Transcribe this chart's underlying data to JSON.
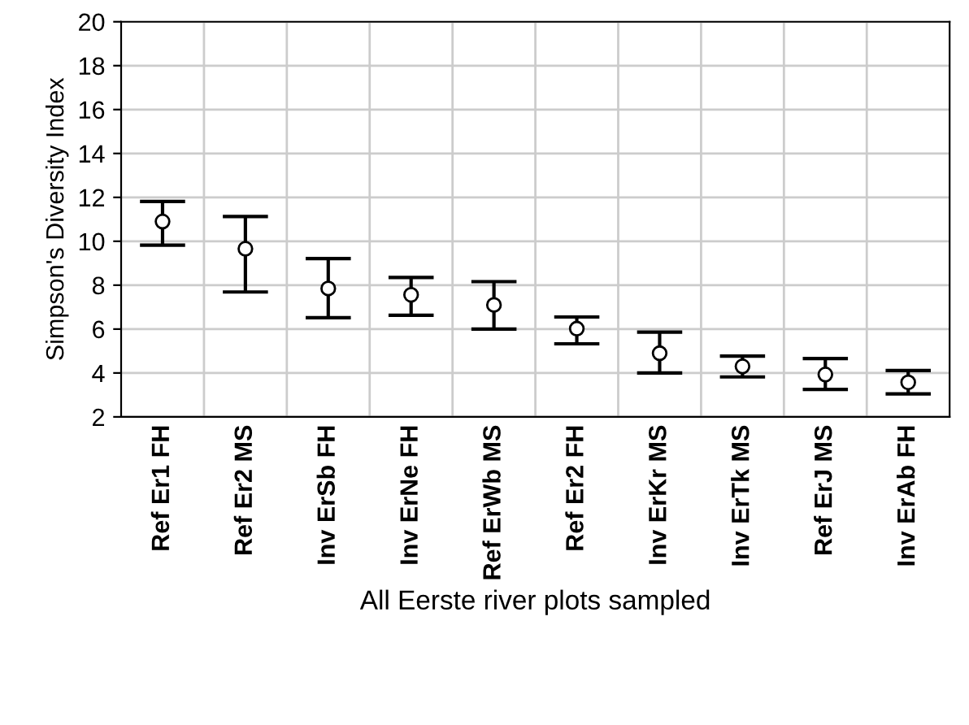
{
  "chart_data": {
    "type": "scatter",
    "xlabel": "All Eerste river plots sampled",
    "ylabel": "Simpson's Diversity Index",
    "categories": [
      "Ref Er1 FH",
      "Ref Er2 MS",
      "Inv ErSb FH",
      "Inv ErNe FH",
      "Ref ErWb MS",
      "Ref Er2 FH",
      "Inv ErKr MS",
      "Inv ErTk MS",
      "Ref ErJ MS",
      "Inv ErAb FH"
    ],
    "values": [
      10.9,
      9.66,
      7.85,
      7.56,
      7.1,
      6.02,
      4.9,
      4.3,
      3.93,
      3.57
    ],
    "errors": [
      [
        9.82,
        11.81
      ],
      [
        7.69,
        11.13
      ],
      [
        6.52,
        9.21
      ],
      [
        6.63,
        8.35
      ],
      [
        6.0,
        8.16
      ],
      [
        5.33,
        6.55
      ],
      [
        4.0,
        5.86
      ],
      [
        3.82,
        4.77
      ],
      [
        3.25,
        4.66
      ],
      [
        3.05,
        4.11
      ]
    ],
    "color": "#000000",
    "marker": "circle",
    "grid": true,
    "ylim": [
      2,
      20
    ],
    "yticks": [
      2,
      4,
      6,
      8,
      10,
      12,
      14,
      16,
      18,
      20
    ]
  }
}
